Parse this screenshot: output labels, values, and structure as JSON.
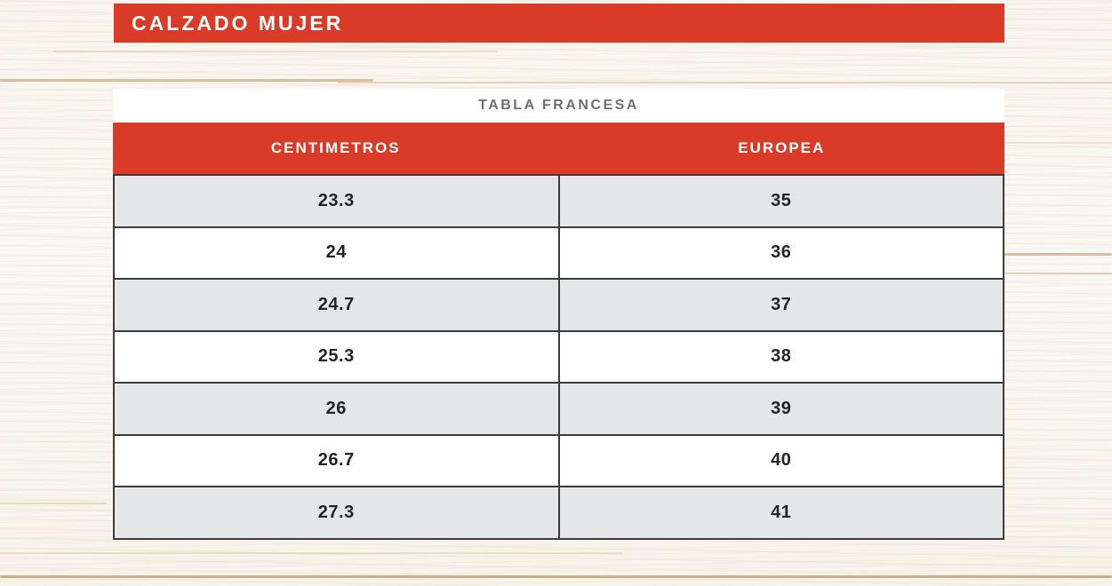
{
  "banner": {
    "title": "CALZADO MUJER",
    "background_color": "#d93b28",
    "text_color": "#ffffff"
  },
  "table": {
    "title": "TABLA FRANCESA",
    "columns": [
      "CENTIMETROS",
      "EUROPEA"
    ],
    "rows": [
      [
        "23.3",
        "35"
      ],
      [
        "24",
        "36"
      ],
      [
        "24.7",
        "37"
      ],
      [
        "25.3",
        "38"
      ],
      [
        "26",
        "39"
      ],
      [
        "26.7",
        "40"
      ],
      [
        "27.3",
        "41"
      ]
    ],
    "colors": {
      "header_background": "#d93b28",
      "header_text": "#ffffff",
      "title_text": "#6f7073",
      "title_background": "#ffffff",
      "row_alternate_background": "#e5e6e8",
      "row_background": "#ffffff",
      "border": "#3c3c3c",
      "cell_text": "#242424"
    }
  }
}
